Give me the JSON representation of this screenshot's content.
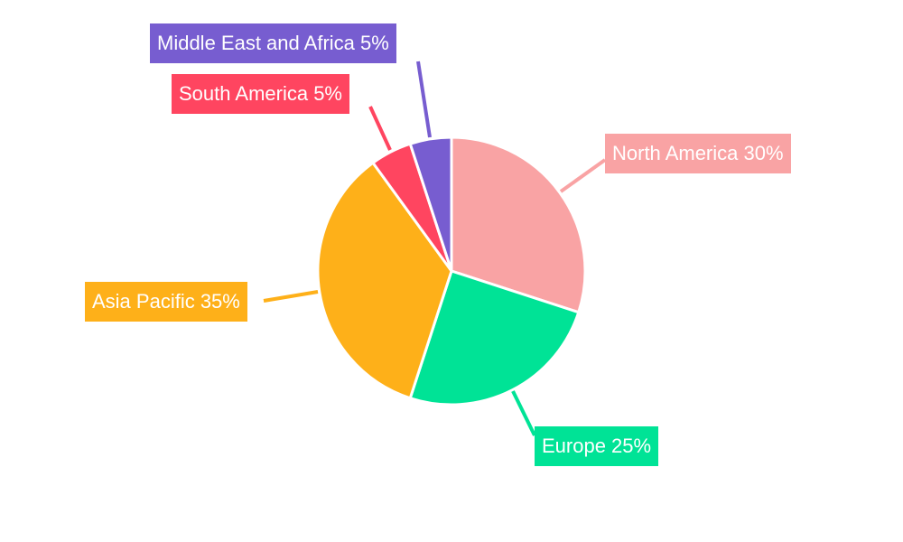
{
  "chart_data": {
    "type": "pie",
    "start_angle": "top, clockwise",
    "slices": [
      {
        "label": "North America",
        "value": 30,
        "text": "North America 30%",
        "color": "#F9A3A4"
      },
      {
        "label": "Europe",
        "value": 25,
        "text": "Europe 25%",
        "color": "#00E396"
      },
      {
        "label": "Asia Pacific",
        "value": 35,
        "text": "Asia Pacific 35%",
        "color": "#FEB019"
      },
      {
        "label": "South America",
        "value": 5,
        "text": "South America 5%",
        "color": "#FF4560"
      },
      {
        "label": "Middle East and Africa",
        "value": 5,
        "text": "Middle East and Africa 5%",
        "color": "#775DD0"
      }
    ],
    "legend": "none",
    "data_labels": "outside boxes with leader lines"
  }
}
